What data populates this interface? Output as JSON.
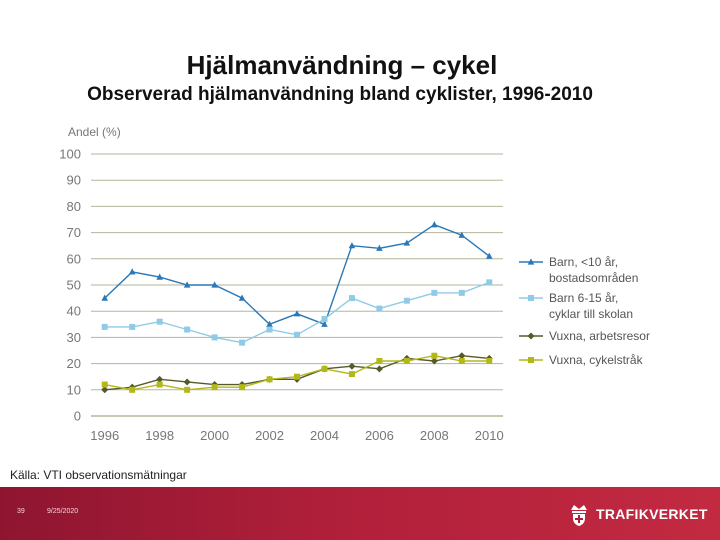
{
  "header": {
    "title": "Hjälmanvändning – cykel",
    "subtitle": "Observerad hjälmanvändning bland cyklister, 1996-2010"
  },
  "source": "Källa: VTI observationsmätningar",
  "footer": {
    "slide_number": "39",
    "date": "9/25/2020",
    "brand": "TRAFIKVERKET"
  },
  "colors": {
    "barn_u10": "#2a78b8",
    "barn_6_15": "#8fcbe6",
    "vuxna_arbete": "#565a2a",
    "vuxna_cykel": "#b4b817",
    "grid": "#b5b59a",
    "axis_text": "#777777",
    "footer": "#b01f3a"
  },
  "chart_data": {
    "type": "line",
    "title": "",
    "ylabel": "Andel (%)",
    "xlabel": "",
    "ylim": [
      0,
      100
    ],
    "xlim": [
      1995.5,
      2010.5
    ],
    "yticks": [
      "0",
      "10",
      "20",
      "30",
      "40",
      "50",
      "60",
      "70",
      "80",
      "90",
      "100"
    ],
    "xticks": [
      "1996",
      "1998",
      "2000",
      "2002",
      "2004",
      "2006",
      "2008",
      "2010"
    ],
    "x": [
      1996,
      1997,
      1998,
      1999,
      2000,
      2001,
      2002,
      2003,
      2004,
      2005,
      2006,
      2007,
      2008,
      2009,
      2010
    ],
    "grid": true,
    "legend_position": "right",
    "series": [
      {
        "name": "Barn, <10 år, bostadsområden",
        "legend_lines": [
          "Barn, <10 år,",
          "bostadsområden"
        ],
        "marker": "triangle",
        "values": [
          45,
          55,
          53,
          50,
          50,
          45,
          35,
          39,
          35,
          65,
          64,
          66,
          73,
          69,
          61
        ]
      },
      {
        "name": "Barn 6-15 år, cyklar till skolan",
        "legend_lines": [
          "Barn 6-15 år,",
          "cyklar till skolan"
        ],
        "marker": "square",
        "values": [
          34,
          34,
          36,
          33,
          30,
          28,
          33,
          31,
          37,
          45,
          41,
          44,
          47,
          47,
          51
        ]
      },
      {
        "name": "Vuxna, arbetsresor",
        "legend_lines": [
          "Vuxna, arbetsresor"
        ],
        "marker": "diamond",
        "values": [
          10,
          11,
          14,
          13,
          12,
          12,
          14,
          14,
          18,
          19,
          18,
          22,
          21,
          23,
          22
        ]
      },
      {
        "name": "Vuxna, cykelstråk",
        "legend_lines": [
          "Vuxna, cykelstråk"
        ],
        "marker": "square",
        "values": [
          12,
          10,
          12,
          10,
          11,
          11,
          14,
          15,
          18,
          16,
          21,
          21,
          23,
          21,
          21
        ]
      }
    ]
  }
}
